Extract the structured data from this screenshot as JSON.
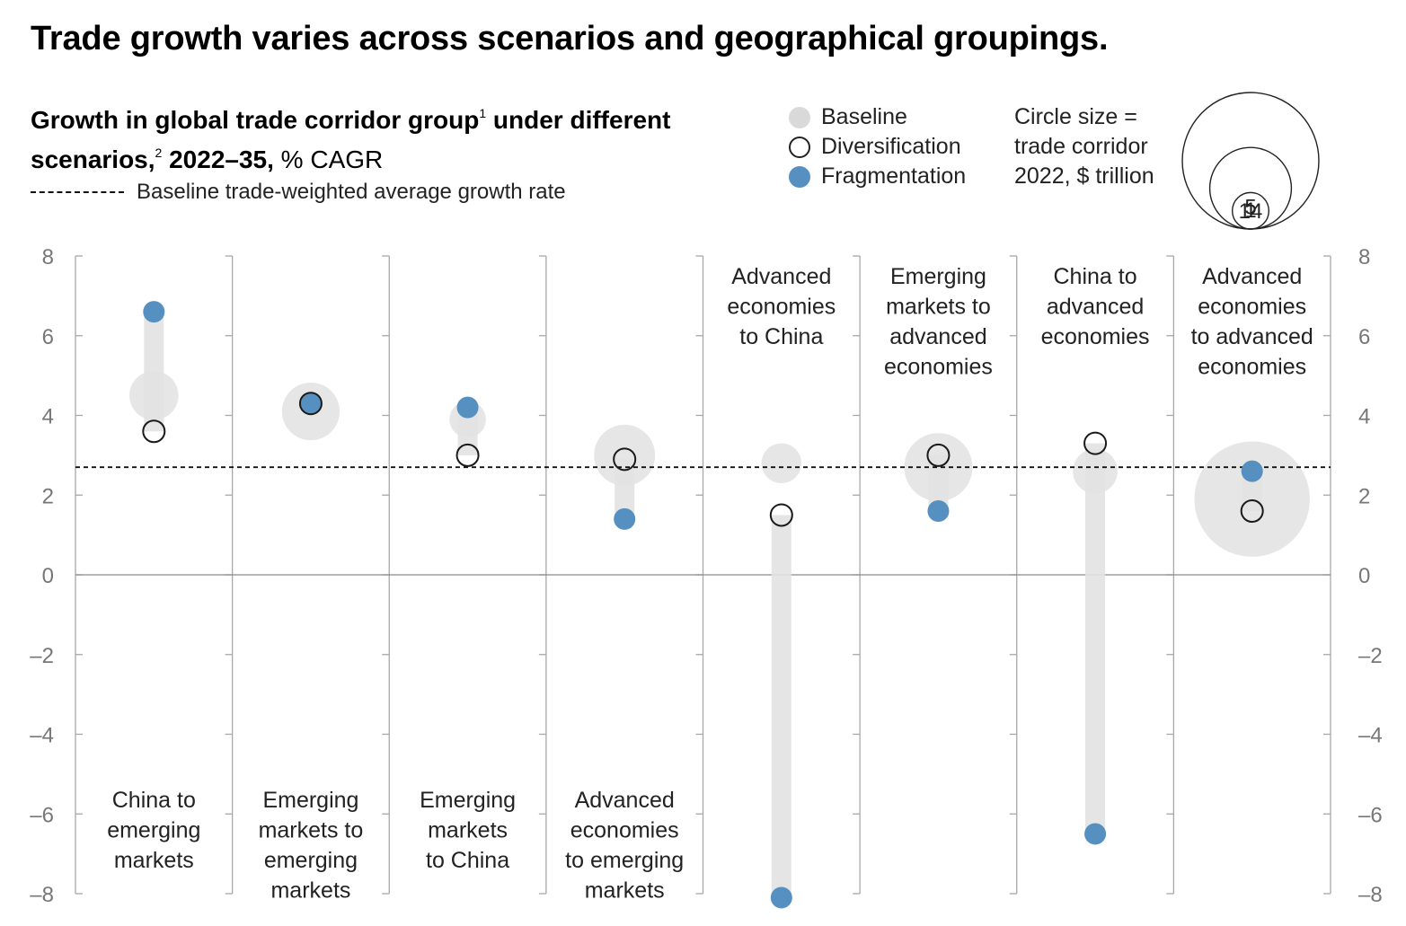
{
  "title": "Trade growth varies across scenarios and geographical groupings.",
  "subtitle": {
    "main": "Growth in global trade corridor group",
    "sup1": "1",
    "mid": " under different scenarios,",
    "sup2": "2",
    "years": " 2022–35,",
    "unit": " % CAGR"
  },
  "reference_label": "Baseline trade-weighted average growth rate",
  "legend": {
    "baseline": "Baseline",
    "diversification": "Diversification",
    "fragmentation": "Fragmentation"
  },
  "size_legend": {
    "text": "Circle size = trade corridor 2022, $ trillion",
    "values": [
      {
        "label": "1",
        "value": 1
      },
      {
        "label": "5",
        "value": 5
      },
      {
        "label": "14",
        "value": 14
      }
    ]
  },
  "colors": {
    "baseline": "#e6e6e6",
    "fragmentation": "#5590c0",
    "bar": "#e2e2e2",
    "axis": "#888888"
  },
  "chart_data": {
    "type": "scatter",
    "ylim": [
      -8,
      8
    ],
    "yticks": [
      {
        "value": 8,
        "label": "8"
      },
      {
        "value": 6,
        "label": "6"
      },
      {
        "value": 4,
        "label": "4"
      },
      {
        "value": 2,
        "label": "2"
      },
      {
        "value": 0,
        "label": "0"
      },
      {
        "value": -2,
        "label": "–2"
      },
      {
        "value": -4,
        "label": "–4"
      },
      {
        "value": -6,
        "label": "–6"
      },
      {
        "value": -8,
        "label": "–8"
      }
    ],
    "reference_value": 2.7,
    "series": [
      {
        "name": "Baseline"
      },
      {
        "name": "Diversification"
      },
      {
        "name": "Fragmentation"
      }
    ],
    "groups": [
      {
        "label_lines": [
          "China to",
          "emerging",
          "markets"
        ],
        "label_pos": "bottom",
        "baseline": 4.5,
        "diversification": 3.6,
        "fragmentation": 6.6,
        "trade_2022": 1.8
      },
      {
        "label_lines": [
          "Emerging",
          "markets to",
          "emerging",
          "markets"
        ],
        "label_pos": "bottom",
        "baseline": 4.1,
        "diversification": 4.3,
        "fragmentation": 4.3,
        "trade_2022": 2.5
      },
      {
        "label_lines": [
          "Emerging",
          "markets",
          "to China"
        ],
        "label_pos": "bottom",
        "baseline": 3.9,
        "diversification": 3.0,
        "fragmentation": 4.2,
        "trade_2022": 1.0
      },
      {
        "label_lines": [
          "Advanced",
          "economies",
          "to emerging",
          "markets"
        ],
        "label_pos": "bottom",
        "baseline": 3.0,
        "diversification": 2.9,
        "fragmentation": 1.4,
        "trade_2022": 2.8
      },
      {
        "label_lines": [
          "Advanced",
          "economies",
          "to China"
        ],
        "label_pos": "top",
        "baseline": 2.8,
        "diversification": 1.5,
        "fragmentation": -8.1,
        "trade_2022": 1.2
      },
      {
        "label_lines": [
          "Emerging",
          "markets to",
          "advanced",
          "economies"
        ],
        "label_pos": "top",
        "baseline": 2.7,
        "diversification": 3.0,
        "fragmentation": 1.6,
        "trade_2022": 3.5
      },
      {
        "label_lines": [
          "China to",
          "advanced",
          "economies"
        ],
        "label_pos": "top",
        "baseline": 2.6,
        "diversification": 3.3,
        "fragmentation": -6.5,
        "trade_2022": 1.5
      },
      {
        "label_lines": [
          "Advanced",
          "economies",
          "to advanced",
          "economies"
        ],
        "label_pos": "top",
        "baseline": 1.9,
        "diversification": 1.6,
        "fragmentation": 2.6,
        "trade_2022": 10.0
      }
    ]
  }
}
